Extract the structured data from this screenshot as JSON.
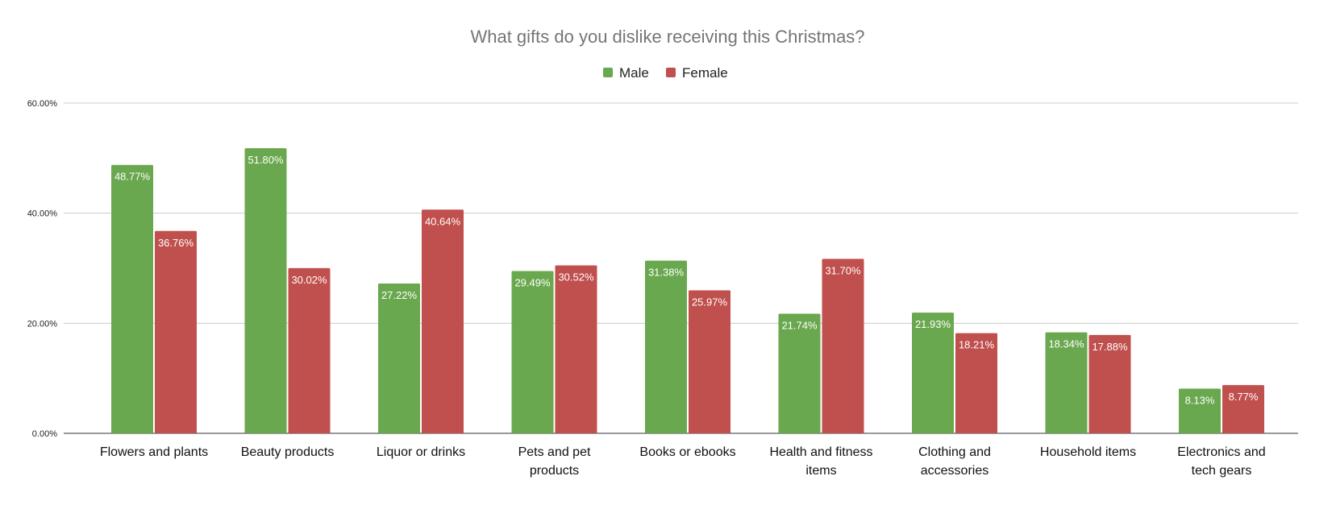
{
  "chart_data": {
    "type": "bar",
    "title": "What gifts do you dislike receiving this Christmas?",
    "xlabel": "",
    "ylabel": "",
    "ylim": [
      0,
      60
    ],
    "yticks": [
      "0.00%",
      "20.00%",
      "40.00%",
      "60.00%"
    ],
    "ytick_values": [
      0,
      20,
      40,
      60
    ],
    "grid": true,
    "legend": "top",
    "categories": [
      [
        "Flowers and plants"
      ],
      [
        "Beauty products"
      ],
      [
        "Liquor or drinks"
      ],
      [
        "Pets and pet",
        "products"
      ],
      [
        "Books or ebooks"
      ],
      [
        "Health and fitness",
        "items"
      ],
      [
        "Clothing and",
        "accessories"
      ],
      [
        "Household items"
      ],
      [
        "Electronics and",
        "tech gears"
      ]
    ],
    "series": [
      {
        "name": "Male",
        "color": "#6aa84f",
        "values": [
          48.77,
          51.8,
          27.22,
          29.49,
          31.38,
          21.74,
          21.93,
          18.34,
          8.13
        ],
        "labels": [
          "48.77%",
          "51.80%",
          "27.22%",
          "29.49%",
          "31.38%",
          "21.74%",
          "21.93%",
          "18.34%",
          "8.13%"
        ]
      },
      {
        "name": "Female",
        "color": "#c0504d",
        "values": [
          36.76,
          30.02,
          40.64,
          30.52,
          25.97,
          31.7,
          18.21,
          17.88,
          8.77
        ],
        "labels": [
          "36.76%",
          "30.02%",
          "40.64%",
          "30.52%",
          "25.97%",
          "31.70%",
          "18.21%",
          "17.88%",
          "8.77%"
        ]
      }
    ]
  }
}
